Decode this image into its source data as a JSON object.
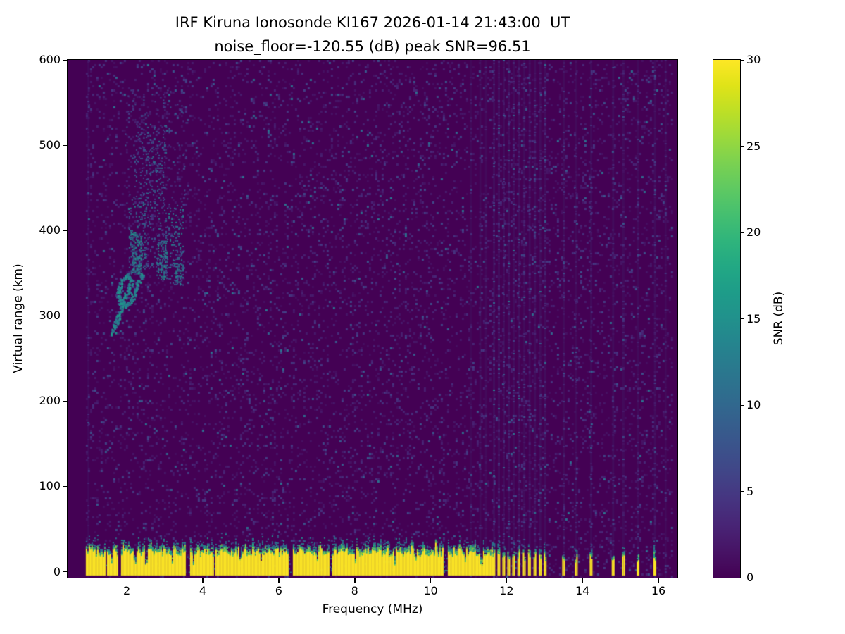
{
  "chart_data": {
    "type": "heatmap",
    "title": "IRF Kiruna Ionosonde KI167 2026-01-14 21:43:00  UT",
    "subtitle": "noise_floor=-120.55 (dB) peak SNR=96.51",
    "station": "IRF Kiruna Ionosonde KI167",
    "timestamp_ut": "2026-01-14 21:43:00",
    "noise_floor_db": -120.55,
    "peak_snr_db": 96.51,
    "xlabel": "Frequency (MHz)",
    "ylabel": "Virtual range (km)",
    "xlim": [
      0.44,
      16.5
    ],
    "ylim": [
      -7,
      600
    ],
    "xticks": [
      2,
      4,
      6,
      8,
      10,
      12,
      14,
      16
    ],
    "yticks": [
      0,
      100,
      200,
      300,
      400,
      500,
      600
    ],
    "grid": false,
    "colorbar": {
      "label": "SNR (dB)",
      "min": 0,
      "max": 30,
      "ticks": [
        0,
        5,
        10,
        15,
        20,
        25,
        30
      ],
      "colormap": "viridis",
      "stops": [
        [
          0,
          "#440154"
        ],
        [
          0.05,
          "#471365"
        ],
        [
          0.1,
          "#482475"
        ],
        [
          0.15,
          "#463480"
        ],
        [
          0.2,
          "#414487"
        ],
        [
          0.25,
          "#3b528b"
        ],
        [
          0.3,
          "#355f8d"
        ],
        [
          0.35,
          "#2f6c8e"
        ],
        [
          0.4,
          "#2a788e"
        ],
        [
          0.45,
          "#25848e"
        ],
        [
          0.5,
          "#21918c"
        ],
        [
          0.55,
          "#1e9c89"
        ],
        [
          0.6,
          "#22a884"
        ],
        [
          0.65,
          "#2fb47c"
        ],
        [
          0.7,
          "#44bf70"
        ],
        [
          0.75,
          "#5ec962"
        ],
        [
          0.8,
          "#7ad151"
        ],
        [
          0.85,
          "#9bd93c"
        ],
        [
          0.9,
          "#bddf26"
        ],
        [
          0.95,
          "#dfe318"
        ],
        [
          1,
          "#fde725"
        ]
      ]
    },
    "data_freq_range": [
      0.92,
      16.35
    ],
    "background_color": "#440154",
    "ground_clutter": {
      "f_start": 0.92,
      "f_end_continuous": 11.62,
      "top_km_min": 19,
      "top_km_max": 28,
      "description": "saturated near-range clutter band ~0-30 km (>30 dB SNR) with green/teal fringe on top"
    },
    "rfi_notches": [
      {
        "f": 1.44,
        "w": 0.05,
        "d": 1
      },
      {
        "f": 1.58,
        "w": 0.04,
        "d": 0.7
      },
      {
        "f": 1.8,
        "w": 0.07,
        "d": 1
      },
      {
        "f": 2.2,
        "w": 0.04,
        "d": 0.6
      },
      {
        "f": 2.5,
        "w": 0.05,
        "d": 0.8
      },
      {
        "f": 3.18,
        "w": 0.04,
        "d": 0.6
      },
      {
        "f": 3.58,
        "w": 0.12,
        "d": 1
      },
      {
        "f": 3.74,
        "w": 0.05,
        "d": 0.7
      },
      {
        "f": 4.3,
        "w": 0.06,
        "d": 0.9
      },
      {
        "f": 4.98,
        "w": 0.04,
        "d": 0.6
      },
      {
        "f": 5.52,
        "w": 0.04,
        "d": 0.7
      },
      {
        "f": 6.3,
        "w": 0.1,
        "d": 1
      },
      {
        "f": 7.0,
        "w": 0.04,
        "d": 0.6
      },
      {
        "f": 7.35,
        "w": 0.09,
        "d": 0.9
      },
      {
        "f": 8.02,
        "w": 0.04,
        "d": 0.6
      },
      {
        "f": 9.05,
        "w": 0.05,
        "d": 0.7
      },
      {
        "f": 9.6,
        "w": 0.04,
        "d": 0.6
      },
      {
        "f": 10.38,
        "w": 0.08,
        "d": 0.9
      },
      {
        "f": 10.9,
        "w": 0.05,
        "d": 0.7
      },
      {
        "f": 11.32,
        "w": 0.05,
        "d": 0.8
      }
    ],
    "band_segments": [
      {
        "f": 11.66,
        "w": 0.06,
        "s": 0.7
      },
      {
        "f": 11.79,
        "w": 0.06,
        "s": 0.7
      },
      {
        "f": 11.92,
        "w": 0.06,
        "s": 0.6
      },
      {
        "f": 12.05,
        "w": 0.06,
        "s": 0.7
      },
      {
        "f": 12.18,
        "w": 0.06,
        "s": 0.6
      },
      {
        "f": 12.32,
        "w": 0.07,
        "s": 0.7
      },
      {
        "f": 12.46,
        "w": 0.06,
        "s": 0.6
      },
      {
        "f": 12.6,
        "w": 0.07,
        "s": 0.7
      },
      {
        "f": 12.74,
        "w": 0.06,
        "s": 0.6
      },
      {
        "f": 12.88,
        "w": 0.06,
        "s": 0.6
      },
      {
        "f": 13.01,
        "w": 0.06,
        "s": 0.6
      },
      {
        "f": 13.5,
        "w": 0.07,
        "s": 0.55
      },
      {
        "f": 13.82,
        "w": 0.04,
        "s": 0.4
      },
      {
        "f": 14.22,
        "w": 0.06,
        "s": 0.5
      },
      {
        "f": 14.8,
        "w": 0.06,
        "s": 0.5
      },
      {
        "f": 15.07,
        "w": 0.05,
        "s": 0.45
      },
      {
        "f": 15.45,
        "w": 0.05,
        "s": 0.45
      },
      {
        "f": 15.9,
        "w": 0.06,
        "s": 0.5
      }
    ],
    "rfi_stripes": [
      {
        "f": 0.98,
        "s": 0.35
      },
      {
        "f": 11.05,
        "s": 0.25
      },
      {
        "f": 11.3,
        "s": 0.3
      },
      {
        "f": 11.45,
        "s": 0.3
      },
      {
        "f": 16.18,
        "s": 0.3
      }
    ],
    "echo_clusters": [
      {
        "f0": 2.05,
        "f1": 2.5,
        "r0": 350,
        "r1": 440,
        "density": 0.18,
        "v0": 6,
        "v1": 14
      },
      {
        "f0": 2.1,
        "f1": 2.38,
        "r0": 350,
        "r1": 398,
        "density": 0.45,
        "v0": 9,
        "v1": 17
      },
      {
        "f0": 2.5,
        "f1": 3.02,
        "r0": 355,
        "r1": 525,
        "density": 0.1,
        "v0": 5,
        "v1": 12
      },
      {
        "f0": 2.78,
        "f1": 3.06,
        "r0": 342,
        "r1": 388,
        "density": 0.38,
        "v0": 8,
        "v1": 16
      },
      {
        "f0": 3.02,
        "f1": 3.48,
        "r0": 336,
        "r1": 430,
        "density": 0.15,
        "v0": 6,
        "v1": 14
      },
      {
        "f0": 3.28,
        "f1": 3.5,
        "r0": 336,
        "r1": 365,
        "density": 0.4,
        "v0": 8,
        "v1": 15
      },
      {
        "f0": 1.95,
        "f1": 3.6,
        "r0": 430,
        "r1": 565,
        "density": 0.035,
        "v0": 4,
        "v1": 9
      },
      {
        "f0": 2.2,
        "f1": 2.5,
        "r0": 440,
        "r1": 515,
        "density": 0.09,
        "v0": 5,
        "v1": 10
      },
      {
        "f0": 2.6,
        "f1": 2.8,
        "r0": 468,
        "r1": 525,
        "density": 0.11,
        "v0": 5,
        "v1": 11
      }
    ],
    "echo_hook_points": [
      [
        1.62,
        280
      ],
      [
        1.7,
        292
      ],
      [
        1.8,
        306
      ],
      [
        1.9,
        318
      ],
      [
        2.0,
        328
      ],
      [
        2.08,
        336
      ],
      [
        2.1,
        344
      ],
      [
        2.02,
        348
      ],
      [
        1.9,
        344
      ],
      [
        1.8,
        336
      ],
      [
        1.76,
        326
      ],
      [
        1.82,
        316
      ],
      [
        1.94,
        312
      ],
      [
        2.06,
        316
      ],
      [
        2.18,
        326
      ],
      [
        2.3,
        338
      ],
      [
        2.4,
        350
      ]
    ],
    "echo_description": "spread ionospheric echo trace between ~1.6-3.5 MHz at 280-560 km virtual range"
  }
}
